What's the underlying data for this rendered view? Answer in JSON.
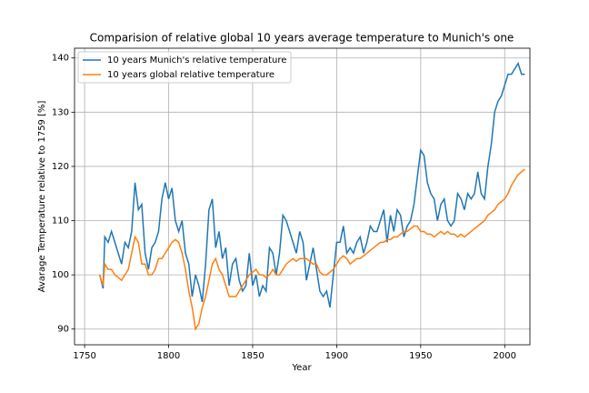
{
  "chart_data": {
    "type": "line",
    "title": "Comparision of relative global 10 years average temperature to Munich's one",
    "xlabel": "Year",
    "ylabel": "Avarage Temperature relative to 1759 [%]",
    "x": [
      1759,
      1761,
      1762,
      1764,
      1766,
      1768,
      1770,
      1772,
      1774,
      1776,
      1778,
      1780,
      1782,
      1784,
      1786,
      1788,
      1790,
      1792,
      1794,
      1796,
      1798,
      1800,
      1802,
      1804,
      1806,
      1808,
      1810,
      1812,
      1814,
      1816,
      1818,
      1820,
      1822,
      1824,
      1826,
      1828,
      1830,
      1832,
      1834,
      1836,
      1838,
      1840,
      1842,
      1844,
      1846,
      1848,
      1850,
      1852,
      1854,
      1856,
      1858,
      1860,
      1862,
      1864,
      1866,
      1868,
      1870,
      1872,
      1874,
      1876,
      1878,
      1880,
      1882,
      1884,
      1886,
      1888,
      1890,
      1892,
      1894,
      1896,
      1898,
      1900,
      1902,
      1904,
      1906,
      1908,
      1910,
      1912,
      1914,
      1916,
      1918,
      1920,
      1922,
      1924,
      1926,
      1928,
      1930,
      1932,
      1934,
      1936,
      1938,
      1940,
      1942,
      1944,
      1946,
      1948,
      1950,
      1952,
      1954,
      1956,
      1958,
      1960,
      1962,
      1964,
      1966,
      1968,
      1970,
      1972,
      1974,
      1976,
      1978,
      1980,
      1982,
      1984,
      1986,
      1988,
      1990,
      1992,
      1994,
      1996,
      1998,
      2000,
      2002,
      2004,
      2006,
      2008,
      2010,
      2012
    ],
    "series": [
      {
        "name": "10 years Munich's relative temperature",
        "color": "#1f77b4",
        "values": [
          100,
          97.5,
          107,
          106,
          108,
          106,
          104,
          102,
          106,
          105,
          108,
          117,
          112,
          113,
          104,
          101,
          105,
          106,
          108,
          114,
          117,
          114,
          116,
          110,
          108,
          110,
          104,
          102,
          96,
          100,
          98,
          95,
          102,
          112,
          114,
          105,
          108,
          103,
          105,
          98,
          102,
          103,
          99,
          97,
          98,
          104,
          98,
          100,
          96,
          98,
          97,
          105,
          104,
          100,
          104,
          111,
          110,
          108,
          106,
          104,
          108,
          106,
          99,
          102,
          105,
          101,
          97,
          96,
          97,
          94,
          100,
          106,
          106,
          109,
          104,
          105,
          104,
          106,
          107,
          104,
          106,
          109,
          108,
          108,
          110,
          112,
          106,
          111,
          108,
          112,
          111,
          107,
          109,
          110,
          113,
          118,
          123,
          122,
          117,
          115,
          114,
          110,
          113,
          114,
          110,
          109,
          110,
          115,
          114,
          112,
          115,
          114,
          115,
          119,
          115,
          114,
          120,
          124,
          130,
          132,
          133,
          135,
          137,
          137,
          138,
          139,
          137,
          137
        ]
      },
      {
        "name": "10 years global relative temperature",
        "color": "#ff7f0e",
        "values": [
          100,
          98,
          102,
          101,
          101,
          100,
          99.5,
          99,
          100,
          101,
          104,
          107,
          106,
          102,
          102,
          100,
          100,
          101,
          103,
          103,
          104,
          105,
          106,
          106.5,
          106,
          104,
          101,
          97,
          94,
          90,
          91,
          94,
          96,
          99,
          102,
          103,
          101,
          100,
          98,
          96,
          96,
          96,
          97,
          98,
          99,
          100,
          100.5,
          101,
          100,
          100,
          99.5,
          100,
          101,
          100,
          100,
          101,
          102,
          102.5,
          103,
          102.5,
          103,
          103,
          103,
          102.5,
          102,
          102,
          100.5,
          100,
          100,
          100.5,
          101,
          102,
          103,
          103.5,
          103,
          102,
          102.5,
          103,
          103,
          103.5,
          104,
          104.5,
          105,
          105.5,
          106,
          106,
          106.5,
          106.5,
          107,
          107,
          107.5,
          108,
          108,
          108.5,
          109,
          109,
          108,
          108,
          107.5,
          107.5,
          107,
          107.5,
          108,
          107.5,
          108,
          107.5,
          107.5,
          107,
          107.5,
          107,
          107.5,
          108,
          108.5,
          109,
          109.5,
          110,
          111,
          111.5,
          112,
          113,
          113.5,
          114,
          115,
          116.5,
          117.5,
          118.5,
          119,
          119.5
        ]
      }
    ],
    "xlim": [
      1744,
      2015
    ],
    "ylim": [
      87.1,
      141.8
    ],
    "xticks": [
      1750,
      1800,
      1850,
      1900,
      1950,
      2000
    ],
    "yticks": [
      90,
      100,
      110,
      120,
      130,
      140
    ],
    "grid": true,
    "legend": "upper-left"
  }
}
